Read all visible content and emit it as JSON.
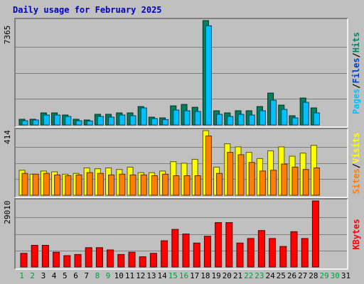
{
  "title": "Daily usage for February 2025",
  "chart_data": [
    {
      "type": "bar",
      "name": "pages-files-hits",
      "ymax_label": "7365",
      "ymax": 7365,
      "legend": [
        {
          "text": "Pages",
          "color": "#00c0ff"
        },
        {
          "text": "/",
          "color": "#000000"
        },
        {
          "text": "Files",
          "color": "#0040c0"
        },
        {
          "text": "/",
          "color": "#000000"
        },
        {
          "text": "Hits",
          "color": "#008060"
        }
      ],
      "series": [
        {
          "name": "Hits",
          "color": "#008060",
          "values": [
            400,
            400,
            850,
            850,
            700,
            400,
            350,
            750,
            750,
            850,
            850,
            1300,
            550,
            500,
            1350,
            1450,
            1250,
            7365,
            1000,
            850,
            1000,
            1000,
            1300,
            2250,
            1400,
            650,
            1900,
            1200,
            0,
            0,
            0
          ]
        },
        {
          "name": "Files",
          "color": "#00c0ff",
          "values": [
            300,
            350,
            700,
            700,
            600,
            300,
            280,
            600,
            550,
            700,
            650,
            1200,
            450,
            380,
            1050,
            1000,
            950,
            7000,
            750,
            600,
            750,
            700,
            1000,
            1750,
            1100,
            500,
            1600,
            850,
            0,
            0,
            0
          ]
        }
      ]
    },
    {
      "type": "bar",
      "name": "sites-visits",
      "ymax_label": "414",
      "ymax": 414,
      "legend": [
        {
          "text": "Sites",
          "color": "#ff8000"
        },
        {
          "text": "/",
          "color": "#000000"
        },
        {
          "text": "Visits",
          "color": "#ffff00"
        }
      ],
      "series": [
        {
          "name": "Visits",
          "color": "#ffff00",
          "values": [
            160,
            135,
            155,
            150,
            135,
            140,
            175,
            170,
            175,
            165,
            180,
            145,
            145,
            155,
            215,
            205,
            230,
            414,
            180,
            330,
            310,
            275,
            235,
            285,
            310,
            250,
            270,
            320,
            0,
            0,
            0
          ]
        },
        {
          "name": "Sites",
          "color": "#ff8000",
          "values": [
            140,
            135,
            140,
            130,
            125,
            130,
            145,
            140,
            130,
            135,
            130,
            130,
            125,
            135,
            125,
            125,
            125,
            380,
            140,
            275,
            260,
            210,
            155,
            160,
            200,
            180,
            165,
            175,
            0,
            0,
            0
          ]
        }
      ]
    },
    {
      "type": "bar",
      "name": "kbytes",
      "ymax_label": "29010",
      "ymax": 29010,
      "legend": [
        {
          "text": "KBytes",
          "color": "#ff0000"
        }
      ],
      "series": [
        {
          "name": "KBytes",
          "color": "#ff0000",
          "values": [
            6000,
            9500,
            9500,
            6500,
            5000,
            5500,
            8500,
            8500,
            7500,
            5500,
            6500,
            4500,
            6000,
            11500,
            16500,
            14500,
            10500,
            13500,
            19500,
            19500,
            10500,
            12500,
            16000,
            12500,
            9000,
            15500,
            12500,
            29010,
            0,
            0,
            0
          ]
        }
      ]
    }
  ],
  "days": [
    "1",
    "2",
    "3",
    "4",
    "5",
    "6",
    "7",
    "8",
    "9",
    "10",
    "11",
    "12",
    "13",
    "14",
    "15",
    "16",
    "17",
    "18",
    "19",
    "20",
    "21",
    "22",
    "23",
    "24",
    "25",
    "26",
    "27",
    "28",
    "29",
    "30",
    "31"
  ],
  "weekend_days": [
    1,
    2,
    8,
    9,
    15,
    16,
    22,
    23,
    29,
    30
  ],
  "day_colors": {
    "weekday": "#000000",
    "weekend": "#00a040"
  }
}
